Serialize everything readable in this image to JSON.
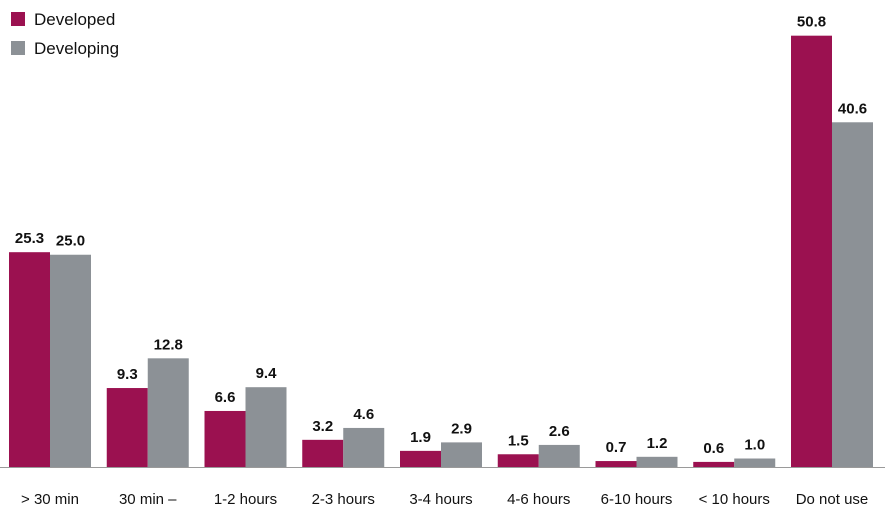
{
  "chart_data": {
    "type": "bar",
    "title": "",
    "xlabel": "",
    "ylabel": "",
    "ylim": [
      0,
      53
    ],
    "grid": false,
    "legend_position": "top-left",
    "categories": [
      "> 30 min",
      "30 min –",
      "1-2 hours",
      "2-3 hours",
      "3-4 hours",
      "4-6 hours",
      "6-10 hours",
      "< 10 hours",
      "Do not use"
    ],
    "series": [
      {
        "name": "Developed",
        "color": "#9b1150",
        "values": [
          25.3,
          9.3,
          6.6,
          3.2,
          1.9,
          1.5,
          0.7,
          0.6,
          50.8
        ],
        "labels": [
          "25.3",
          "9.3",
          "6.6",
          "3.2",
          "1.9",
          "1.5",
          "0.7",
          "0.6",
          "50.8"
        ]
      },
      {
        "name": "Developing",
        "color": "#8c9196",
        "values": [
          25.0,
          12.8,
          9.4,
          4.6,
          2.9,
          2.6,
          1.2,
          1.0,
          40.6
        ],
        "labels": [
          "25.0",
          "12.8",
          "9.4",
          "4.6",
          "2.9",
          "2.6",
          "1.2",
          "1.0",
          "40.6"
        ]
      }
    ],
    "baseline_color": "#9a9a9a"
  }
}
